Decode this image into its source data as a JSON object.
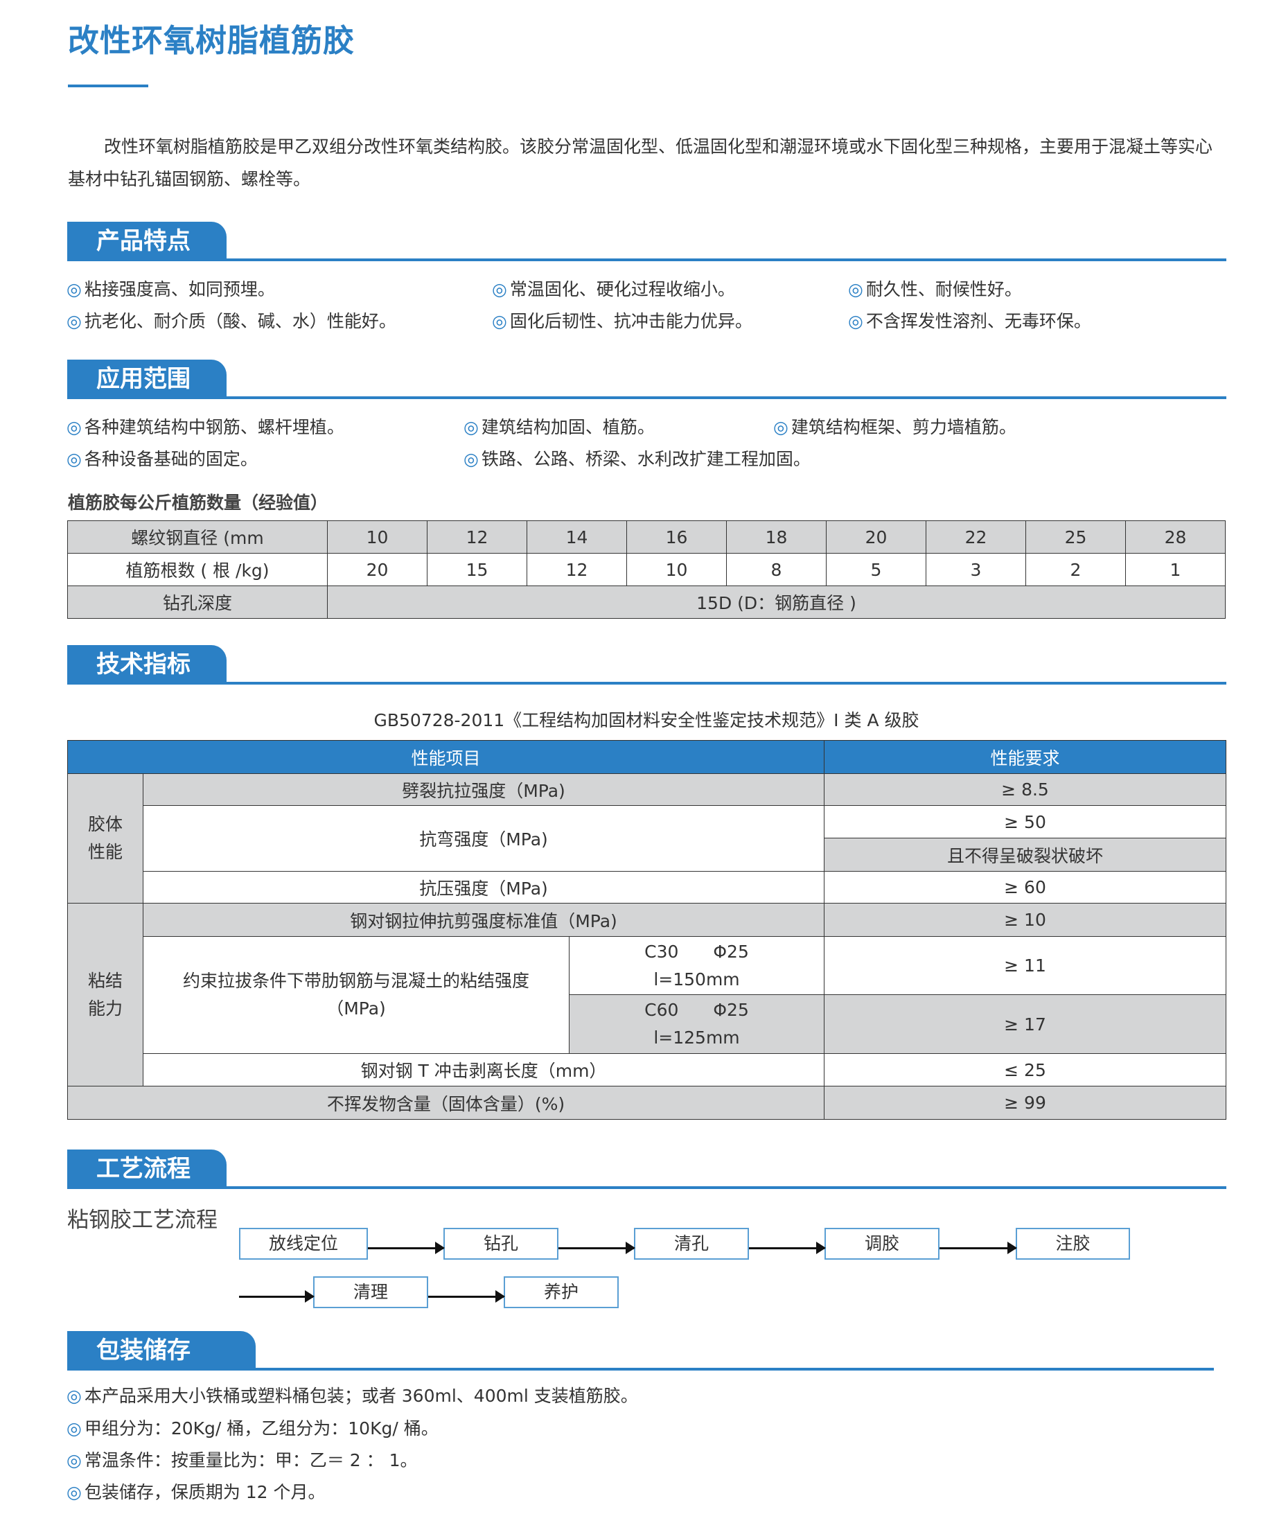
{
  "title": "改性环氧树脂植筋胶",
  "intro": "改性环氧树脂植筋胶是甲乙双组分改性环氧类结构胶。该胶分常温固化型、低温固化型和潮湿环境或水下固化型三种规格，主要用于混凝土等实心基材中钻孔锚固钢筋、螺栓等。",
  "bullet": "◎",
  "accent": "#2b80c5",
  "features": {
    "title": "产品特点",
    "items": [
      "粘接强度高、如同预埋。",
      "常温固化、硬化过程收缩小。",
      "耐久性、耐候性好。",
      "抗老化、耐介质（酸、碱、水）性能好。",
      "固化后韧性、抗冲击能力优异。",
      "不含挥发性溶剂、无毒环保。"
    ]
  },
  "applications": {
    "title": "应用范围",
    "items": [
      "各种建筑结构中钢筋、螺杆埋植。",
      "建筑结构加固、植筋。",
      "建筑结构框架、剪力墙植筋。",
      "各种设备基础的固定。",
      "铁路、公路、桥梁、水利改扩建工程加固。"
    ]
  },
  "rebar_table": {
    "caption": "植筋胶每公斤植筋数量（经验值）",
    "row_labels": [
      "螺纹钢直径 (mm",
      "植筋根数 ( 根 /kg)",
      "钻孔深度"
    ],
    "diameters": [
      "10",
      "12",
      "14",
      "16",
      "18",
      "20",
      "22",
      "25",
      "28"
    ],
    "counts": [
      "20",
      "15",
      "12",
      "10",
      "8",
      "5",
      "3",
      "2",
      "1"
    ],
    "depth": "15D (D：钢筋直径 )"
  },
  "tech": {
    "title": "技术指标",
    "caption": "GB50728-2011《工程结构加固材料安全性鉴定技术规范》I 类 A 级胶",
    "headers": [
      "性能项目",
      "性能要求"
    ],
    "group1": "胶体\n性能",
    "group2": "粘结\n能力",
    "rows": [
      {
        "item": "劈裂抗拉强度（MPa)",
        "req": "≥ 8.5"
      },
      {
        "item": "抗弯强度（MPa)",
        "req": "≥ 50",
        "req2": "且不得呈破裂状破坏"
      },
      {
        "item": "抗压强度（MPa)",
        "req": "≥ 60"
      },
      {
        "item": "钢对钢拉伸抗剪强度标准值（MPa)",
        "req": "≥ 10"
      },
      {
        "item": "约束拉拔条件下带肋钢筋与混凝土的粘结强度（MPa)",
        "sub1": "C30　　Φ25\nl=150mm",
        "req": "≥ 11",
        "sub2": "C60　　Φ25\nl=125mm",
        "req2": "≥ 17"
      },
      {
        "item": "钢对钢 T 冲击剥离长度（mm）",
        "req": "≤ 25"
      },
      {
        "item": "不挥发物含量（固体含量）(%)",
        "req": "≥ 99"
      }
    ]
  },
  "process": {
    "title": "工艺流程",
    "subtitle": "粘钢胶工艺流程",
    "steps": [
      "放线定位",
      "钻孔",
      "清孔",
      "调胶",
      "注胶",
      "清理",
      "养护"
    ]
  },
  "packaging": {
    "title": "包装储存",
    "items": [
      "本产品采用大小铁桶或塑料桶包装；或者 360ml、400ml 支装植筋胶。",
      "甲组分为：20Kg/ 桶，乙组分为：10Kg/ 桶。",
      "常温条件：按重量比为：甲：乙＝ 2 ： 1。",
      "包装储存，保质期为 12 个月。"
    ]
  }
}
